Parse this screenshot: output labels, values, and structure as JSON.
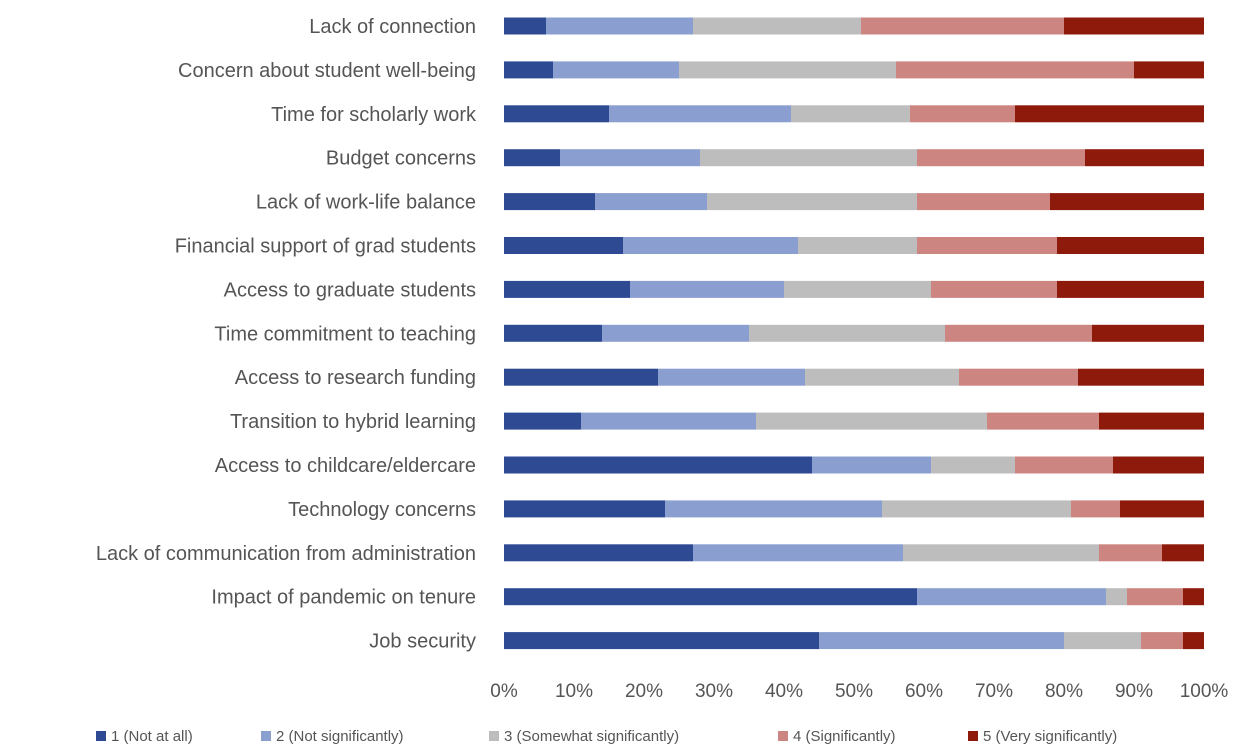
{
  "chart_data": {
    "type": "bar",
    "orientation": "horizontal",
    "stacked": true,
    "percent_stacked": true,
    "title": "",
    "xlabel": "",
    "ylabel": "",
    "xlim": [
      0,
      100
    ],
    "x_ticks": [
      "0%",
      "10%",
      "20%",
      "30%",
      "40%",
      "50%",
      "60%",
      "70%",
      "80%",
      "90%",
      "100%"
    ],
    "grid": false,
    "legend_position": "bottom",
    "categories": [
      "Lack of connection",
      "Concern about student well-being",
      "Time for scholarly work",
      "Budget concerns",
      "Lack of work-life balance",
      "Financial support of grad students",
      "Access to graduate students",
      "Time commitment to teaching",
      "Access to research funding",
      "Transition to hybrid learning",
      "Access to childcare/eldercare",
      "Technology concerns",
      "Lack of communication from administration",
      "Impact of pandemic on tenure",
      "Job security"
    ],
    "series": [
      {
        "name": "1 (Not at all)",
        "color": "#2e4a93",
        "values": [
          6,
          7,
          15,
          8,
          13,
          17,
          18,
          14,
          22,
          11,
          44,
          23,
          27,
          59,
          45
        ]
      },
      {
        "name": "2 (Not significantly)",
        "color": "#8a9fd0",
        "values": [
          21,
          18,
          26,
          20,
          16,
          25,
          22,
          21,
          21,
          25,
          17,
          31,
          30,
          27,
          35
        ]
      },
      {
        "name": "3 (Somewhat significantly)",
        "color": "#bdbdbd",
        "values": [
          24,
          31,
          17,
          31,
          30,
          17,
          21,
          28,
          22,
          33,
          12,
          27,
          28,
          3,
          11
        ]
      },
      {
        "name": "4 (Significantly)",
        "color": "#cc8580",
        "values": [
          29,
          34,
          15,
          24,
          19,
          20,
          18,
          21,
          17,
          16,
          14,
          7,
          9,
          8,
          6
        ]
      },
      {
        "name": "5 (Very significantly)",
        "color": "#8e1a0c",
        "values": [
          20,
          10,
          27,
          17,
          22,
          21,
          21,
          16,
          18,
          15,
          13,
          12,
          6,
          3,
          3
        ]
      }
    ]
  }
}
